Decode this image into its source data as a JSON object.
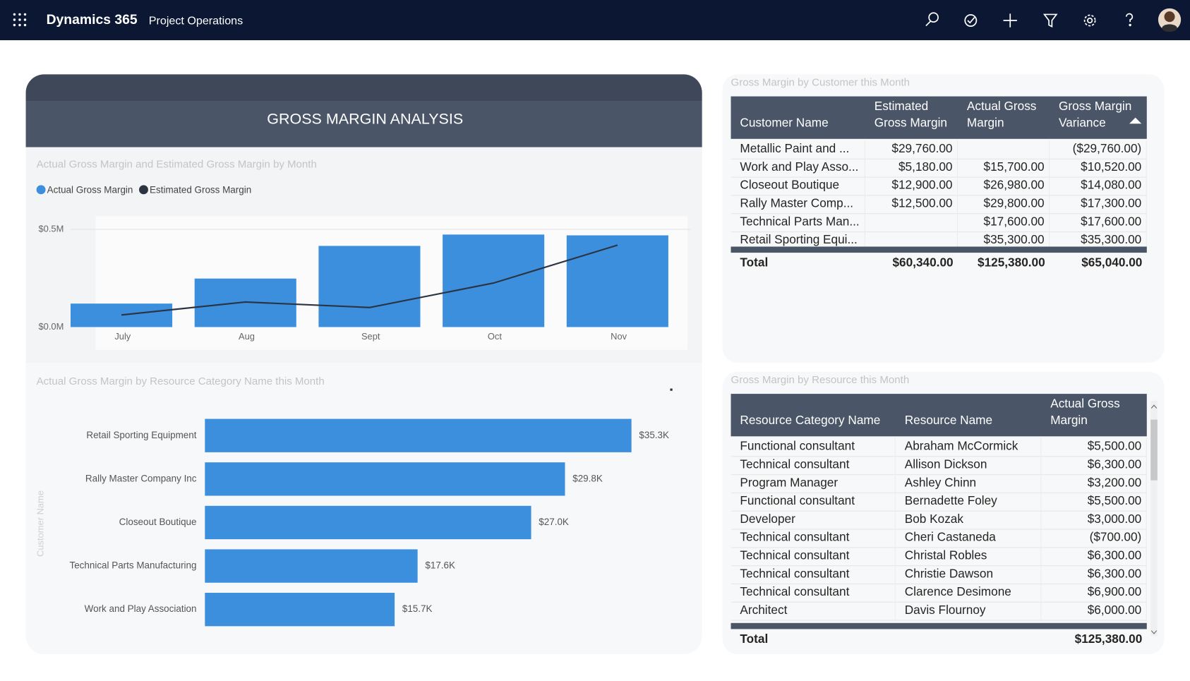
{
  "header": {
    "app": "Dynamics 365",
    "area": "Project Operations"
  },
  "panel_title": "GROSS MARGIN ANALYSIS",
  "chart_data": [
    {
      "type": "combo",
      "title": "Actual Gross Margin and Estimated Gross Margin by Month",
      "categories": [
        "July",
        "Aug",
        "Sept",
        "Oct",
        "Nov"
      ],
      "series": [
        {
          "name": "Actual Gross Margin",
          "type": "bar",
          "color": "#3b8fdd",
          "values": [
            120000,
            248000,
            415000,
            473000,
            469000
          ]
        },
        {
          "name": "Estimated Gross Margin",
          "type": "line",
          "color": "#2b3442",
          "values": [
            62000,
            128000,
            100000,
            225000,
            419000
          ]
        }
      ],
      "ylim": [
        0,
        520000
      ],
      "yticks": [
        {
          "value": 0,
          "label": "$0.0M"
        },
        {
          "value": 500000,
          "label": "$0.5M"
        }
      ],
      "grid": true,
      "legend": "top-left"
    },
    {
      "type": "barh",
      "title": "Actual Gross Margin by Resource Category Name this Month",
      "y_label": "Customer Name",
      "categories": [
        "Retail Sporting Equipment",
        "Rally Master Company Inc",
        "Closeout Boutique",
        "Technical Parts Manufacturing",
        "Work and Play Association"
      ],
      "values": [
        35.3,
        29.8,
        27.0,
        17.6,
        15.7
      ],
      "value_labels": [
        "$35.3K",
        "$29.8K",
        "$27.0K",
        "$17.6K",
        "$15.7K"
      ],
      "color": "#3b8fdd"
    }
  ],
  "customer_table": {
    "title": "Gross Margin by Customer this Month",
    "columns": [
      "Customer Name",
      "Estimated Gross Margin",
      "Actual Gross Margin",
      "Gross Margin Variance"
    ],
    "rows": [
      [
        "Metallic Paint and ...",
        "$29,760.00",
        null,
        "($29,760.00)"
      ],
      [
        "Work and Play Asso...",
        "$5,180.00",
        "$15,700.00",
        "$10,520.00"
      ],
      [
        "Closeout Boutique",
        "$12,900.00",
        "$26,980.00",
        "$14,080.00"
      ],
      [
        "Rally Master Comp...",
        "$12,500.00",
        "$29,800.00",
        "$17,300.00"
      ],
      [
        "Technical Parts Man...",
        null,
        "$17,600.00",
        "$17,600.00"
      ],
      [
        "Retail Sporting Equi...",
        null,
        "$35,300.00",
        "$35,300.00"
      ]
    ],
    "total": [
      "Total",
      "$60,340.00",
      "$125,380.00",
      "$65,040.00"
    ]
  },
  "resource_table": {
    "title": "Gross Margin by Resource this Month",
    "columns": [
      "Resource Category Name",
      "Resource Name",
      "Actual Gross Margin"
    ],
    "rows": [
      [
        "Functional consultant",
        "Abraham McCormick",
        "$5,500.00"
      ],
      [
        "Technical consultant",
        "Allison Dickson",
        "$6,300.00"
      ],
      [
        "Program Manager",
        "Ashley Chinn",
        "$3,200.00"
      ],
      [
        "Functional consultant",
        "Bernadette Foley",
        "$5,500.00"
      ],
      [
        "Developer",
        "Bob Kozak",
        "$3,000.00"
      ],
      [
        "Technical consultant",
        "Cheri Castaneda",
        "($700.00)"
      ],
      [
        "Technical consultant",
        "Christal Robles",
        "$6,300.00"
      ],
      [
        "Technical consultant",
        "Christie Dawson",
        "$6,300.00"
      ],
      [
        "Technical consultant",
        "Clarence Desimone",
        "$6,900.00"
      ],
      [
        "Architect",
        "Davis Flournoy",
        "$6,000.00"
      ]
    ],
    "total": [
      "Total",
      null,
      "$125,380.00"
    ]
  }
}
